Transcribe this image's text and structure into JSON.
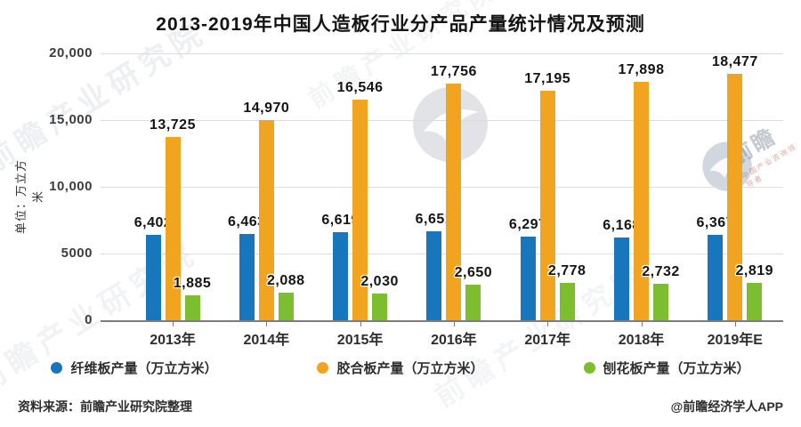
{
  "title": "2013-2019年中国人造板行业分产品产量统计情况及预测",
  "chart_data": {
    "type": "bar",
    "title": "2013-2019年中国人造板行业分产品产量统计情况及预测",
    "ylabel": "单位：万立方米",
    "xlabel": "",
    "categories": [
      "2013年",
      "2014年",
      "2015年",
      "2016年",
      "2017年",
      "2018年",
      "2019年E"
    ],
    "series": [
      {
        "name": "纤维板产量（万立方米）",
        "color": "#1877BC",
        "values": [
          6402,
          6463,
          6619,
          6651,
          6297,
          6168,
          6367
        ]
      },
      {
        "name": "胶合板产量（万立方米）",
        "color": "#F0A41F",
        "values": [
          13725,
          14970,
          16546,
          17756,
          17195,
          17898,
          18477
        ]
      },
      {
        "name": "刨花板产量（万立方米）",
        "color": "#7CBE2F",
        "values": [
          1885,
          2088,
          2030,
          2650,
          2778,
          2732,
          2819
        ]
      }
    ],
    "ylim": [
      0,
      20000
    ],
    "yticks": [
      {
        "value": 0,
        "label": "0"
      },
      {
        "value": 5000,
        "label": "5000"
      },
      {
        "value": 10000,
        "label": "10,000"
      },
      {
        "value": 15000,
        "label": "15,000"
      },
      {
        "value": 20000,
        "label": "20,000"
      }
    ],
    "grid": true,
    "legend_position": "bottom",
    "value_labels_shown": true
  },
  "footer": {
    "source": "资料来源：前瞻产业研究院整理",
    "credit": "@前瞻经济学人APP"
  },
  "watermark": {
    "institute": "前瞻产业研究院",
    "brand": "前瞻",
    "tagline": "中国产业咨询领导者"
  }
}
